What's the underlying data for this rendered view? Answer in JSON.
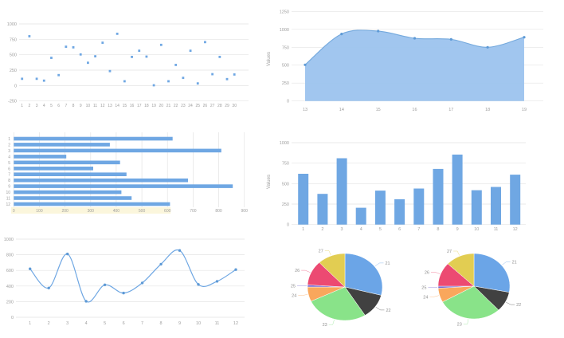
{
  "palette": {
    "series_blue": "#6FA7E3",
    "marker_blue": "#5E9AD6",
    "area_fill": "#9CC3EE",
    "area_stroke": "#74A9DD",
    "grid": "#E3E3E3",
    "axis_text": "#9E9E9E",
    "pie_label_text": "#8F8F8F",
    "highlight_band": "#FBF6DC",
    "background": "#FFFFFF"
  },
  "chart_data": [
    {
      "id": "scatter",
      "type": "scatter",
      "title": "",
      "xlabel": "",
      "ylabel": "",
      "x": [
        1,
        2,
        3,
        4,
        5,
        6,
        7,
        8,
        9,
        10,
        11,
        12,
        13,
        14,
        15,
        16,
        17,
        18,
        19,
        20,
        21,
        22,
        23,
        24,
        25,
        26,
        27,
        28,
        29,
        30
      ],
      "values": [
        110,
        800,
        110,
        80,
        450,
        170,
        630,
        620,
        505,
        370,
        475,
        695,
        235,
        840,
        70,
        465,
        565,
        470,
        5,
        660,
        70,
        335,
        125,
        565,
        35,
        705,
        185,
        465,
        105,
        180
      ],
      "ylim": [
        -250,
        1000
      ],
      "yticks": [
        -250,
        0,
        250,
        500,
        750,
        1000
      ],
      "grid": "horizontal",
      "legend": "none"
    },
    {
      "id": "area",
      "type": "area",
      "title": "",
      "xlabel": "",
      "ylabel": "Values",
      "x": [
        13,
        14,
        15,
        16,
        17,
        18,
        19
      ],
      "values": [
        505,
        935,
        975,
        875,
        860,
        750,
        890
      ],
      "ylim": [
        0,
        1250
      ],
      "yticks": [
        0,
        250,
        500,
        750,
        1000,
        1250
      ],
      "grid": "horizontal",
      "legend": "none",
      "smooth": true
    },
    {
      "id": "hbar",
      "type": "bar",
      "orientation": "horizontal",
      "title": "",
      "xlabel": "",
      "ylabel": "",
      "categories": [
        "1",
        "2",
        "3",
        "4",
        "5",
        "6",
        "7",
        "8",
        "9",
        "10",
        "11",
        "12"
      ],
      "values": [
        620,
        375,
        810,
        205,
        415,
        310,
        440,
        680,
        855,
        420,
        460,
        610
      ],
      "xlim": [
        0,
        900
      ],
      "xticks": [
        0,
        100,
        200,
        300,
        400,
        500,
        600,
        700,
        800,
        900
      ],
      "grid": "vertical",
      "legend": "none"
    },
    {
      "id": "vbar",
      "type": "bar",
      "orientation": "vertical",
      "title": "",
      "xlabel": "",
      "ylabel": "Values",
      "categories": [
        "1",
        "2",
        "3",
        "4",
        "5",
        "6",
        "7",
        "8",
        "9",
        "10",
        "11",
        "12"
      ],
      "values": [
        620,
        375,
        810,
        205,
        415,
        310,
        440,
        680,
        855,
        420,
        460,
        610
      ],
      "ylim": [
        0,
        1000
      ],
      "yticks": [
        0,
        250,
        500,
        750,
        1000
      ],
      "grid": "horizontal",
      "legend": "none"
    },
    {
      "id": "line",
      "type": "line",
      "title": "",
      "xlabel": "",
      "ylabel": "",
      "categories": [
        "1",
        "2",
        "3",
        "4",
        "5",
        "6",
        "7",
        "8",
        "9",
        "10",
        "11",
        "12"
      ],
      "values": [
        620,
        375,
        810,
        205,
        415,
        310,
        440,
        680,
        855,
        420,
        460,
        610
      ],
      "ylim": [
        0,
        1000
      ],
      "yticks": [
        0,
        200,
        400,
        600,
        800,
        1000
      ],
      "grid": "horizontal",
      "legend": "none",
      "smooth": true
    },
    {
      "id": "pie-left",
      "type": "pie",
      "title": "",
      "labels": [
        "21",
        "22",
        "23",
        "24",
        "25",
        "26",
        "27"
      ],
      "values": [
        29,
        12,
        27,
        7,
        1,
        12,
        12
      ],
      "colors": [
        "#6BA5E7",
        "#414141",
        "#89E389",
        "#F9A75C",
        "#7569D1",
        "#EC4A72",
        "#E2CD52"
      ],
      "legend": "none"
    },
    {
      "id": "pie-right",
      "type": "pie",
      "title": "",
      "labels": [
        "21",
        "22",
        "23",
        "24",
        "25",
        "26",
        "27"
      ],
      "values": [
        28,
        10,
        29,
        7,
        1,
        12,
        13
      ],
      "colors": [
        "#6BA5E7",
        "#414141",
        "#89E389",
        "#F9A75C",
        "#7569D1",
        "#EC4A72",
        "#E2CD52"
      ],
      "legend": "none"
    }
  ]
}
